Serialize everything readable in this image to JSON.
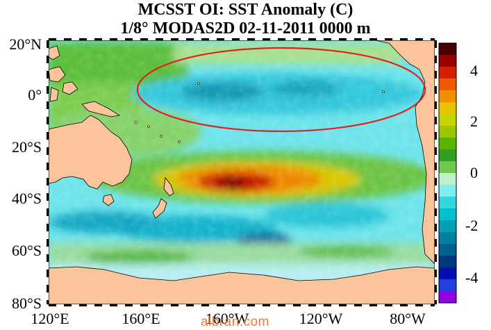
{
  "title": {
    "line1": "MCSST OI:  SST Anomaly (C)",
    "line2": "1/8° MODAS2D 02-11-2011 0000 m"
  },
  "axes": {
    "latitude_labels": [
      "20°N",
      "0°",
      "20°S",
      "40°S",
      "60°S",
      "80°S"
    ],
    "longitude_labels": [
      "120°E",
      "160°E",
      "160°W",
      "120°W",
      "80°W"
    ]
  },
  "colorbar": {
    "labels": [
      "4",
      "2",
      "0",
      "-2",
      "-4"
    ],
    "colors": [
      "#4a0000",
      "#9a0000",
      "#d42000",
      "#ee5a00",
      "#f09000",
      "#e8c400",
      "#c8d400",
      "#98c800",
      "#58b400",
      "#30a020",
      "#70c850",
      "#c0f0c8",
      "#80eef0",
      "#30d8e0",
      "#00c0d0",
      "#00a0b8",
      "#0080a0",
      "#006090",
      "#003880",
      "#0010b0",
      "#2040e0",
      "#9000e0"
    ]
  },
  "annotation": {
    "shape": "ellipse",
    "color": "#e02020"
  },
  "watermark": "albran.com"
}
